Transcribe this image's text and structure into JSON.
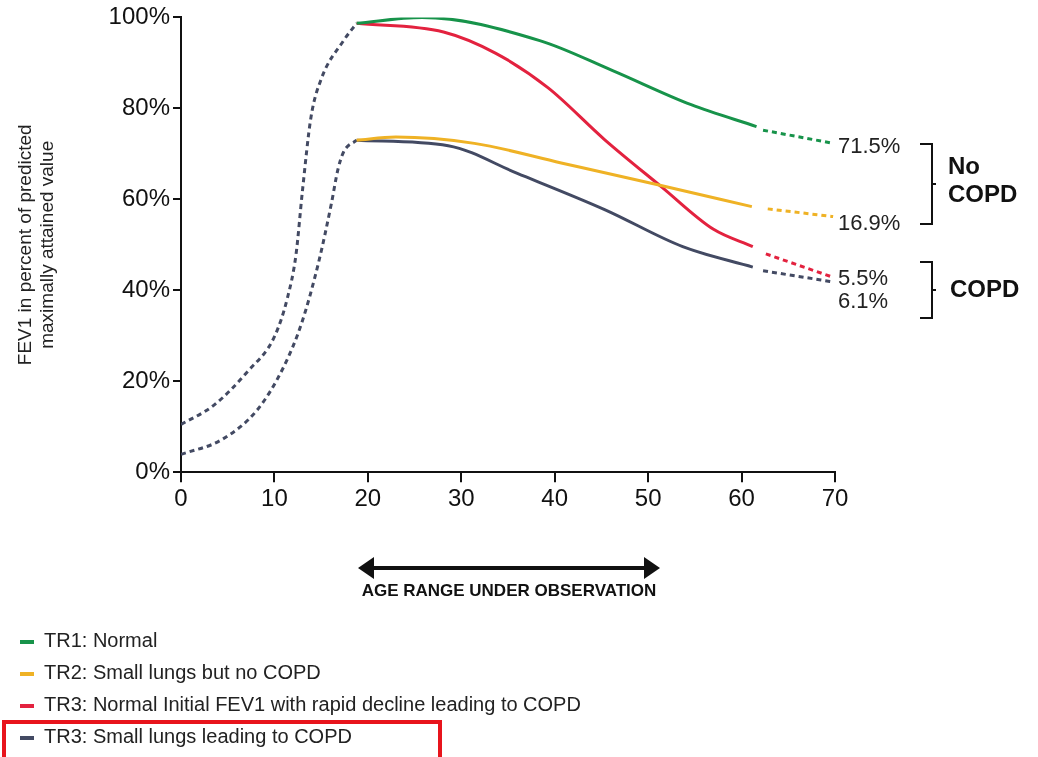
{
  "chart_data": {
    "type": "line",
    "ylabel": "FEV1 in percent of predicted maximally attained value",
    "xlim": [
      0,
      70
    ],
    "xticks": [
      0,
      10,
      20,
      30,
      40,
      50,
      60,
      70
    ],
    "ylim": [
      0,
      100
    ],
    "yticks": [
      {
        "value": 0,
        "label": "0%"
      },
      {
        "value": 20,
        "label": "20%"
      },
      {
        "value": 40,
        "label": "40%"
      },
      {
        "value": 60,
        "label": "60%"
      },
      {
        "value": 80,
        "label": "80%"
      },
      {
        "value": 100,
        "label": "100%"
      }
    ],
    "grid": false,
    "legend": "bottom",
    "marker": "none",
    "series": [
      {
        "name": "TR1: Normal",
        "color": "#17934a",
        "line_style": "solid",
        "x": [
          18.8,
          25.8,
          38.4,
          46.2,
          54.6,
          61.6
        ],
        "values": [
          98.7,
          100,
          94.9,
          88.3,
          80.8,
          76
        ]
      },
      {
        "name": "TR2: Small lungs but no COPD",
        "color": "#efb225",
        "line_style": "solid",
        "x": [
          18.8,
          23,
          31.4,
          40.7,
          50.8,
          61.1
        ],
        "values": [
          73,
          73.7,
          72.3,
          68,
          63.3,
          58.4
        ]
      },
      {
        "name": "TR3: Normal Initial FEV1 with rapid decline leading to COPD",
        "color": "#e3223f",
        "line_style": "solid",
        "x": [
          18.8,
          28.1,
          33.7,
          39.3,
          45.3,
          51.4,
          57,
          61.2
        ],
        "values": [
          98.7,
          96.8,
          92.1,
          84.5,
          73.2,
          62.8,
          53.4,
          49.6
        ]
      },
      {
        "name": "TR3: Small lungs leading to COPD",
        "color": "#434a63",
        "line_style": "solid",
        "x": [
          18.8,
          28.6,
          36,
          45.4,
          53.7,
          61.2
        ],
        "values": [
          73,
          71.8,
          65.7,
          57.7,
          49.6,
          45.1
        ]
      },
      {
        "color": "#17934a",
        "line_style": "dashed",
        "x": [
          62.3,
          69.6
        ],
        "values": [
          75.2,
          72.4
        ]
      },
      {
        "color": "#efb225",
        "line_style": "dashed",
        "x": [
          62.8,
          69.8
        ],
        "values": [
          57.9,
          56.2
        ]
      },
      {
        "color": "#e3223f",
        "line_style": "dashed",
        "x": [
          62.6,
          69.6
        ],
        "values": [
          48,
          43
        ]
      },
      {
        "color": "#434a63",
        "line_style": "dashed",
        "x": [
          62.3,
          69.6
        ],
        "values": [
          44.3,
          41.9
        ]
      },
      {
        "color": "#434a63",
        "line_style": "dashed",
        "x": [
          0,
          3.5,
          7.2,
          10,
          11.4,
          12.3,
          13,
          13.9,
          15,
          17.4,
          18.8
        ],
        "values": [
          10.5,
          14.7,
          22.3,
          29.8,
          38.4,
          47.7,
          61.9,
          77.9,
          86.4,
          94.9,
          98.7
        ]
      },
      {
        "color": "#434a63",
        "line_style": "dashed",
        "x": [
          0,
          4.4,
          8.2,
          11,
          12.9,
          14.7,
          16.1,
          16.8,
          17.4,
          18.8
        ],
        "values": [
          3.9,
          7.2,
          13.8,
          23.2,
          32.7,
          45.9,
          59.1,
          66.6,
          70.4,
          73
        ]
      }
    ],
    "annotations": [
      "71.5%",
      "16.9%",
      "5.5%",
      "6.1%",
      "No COPD",
      "COPD",
      "AGE RANGE UNDER OBSERVATION"
    ]
  }
}
